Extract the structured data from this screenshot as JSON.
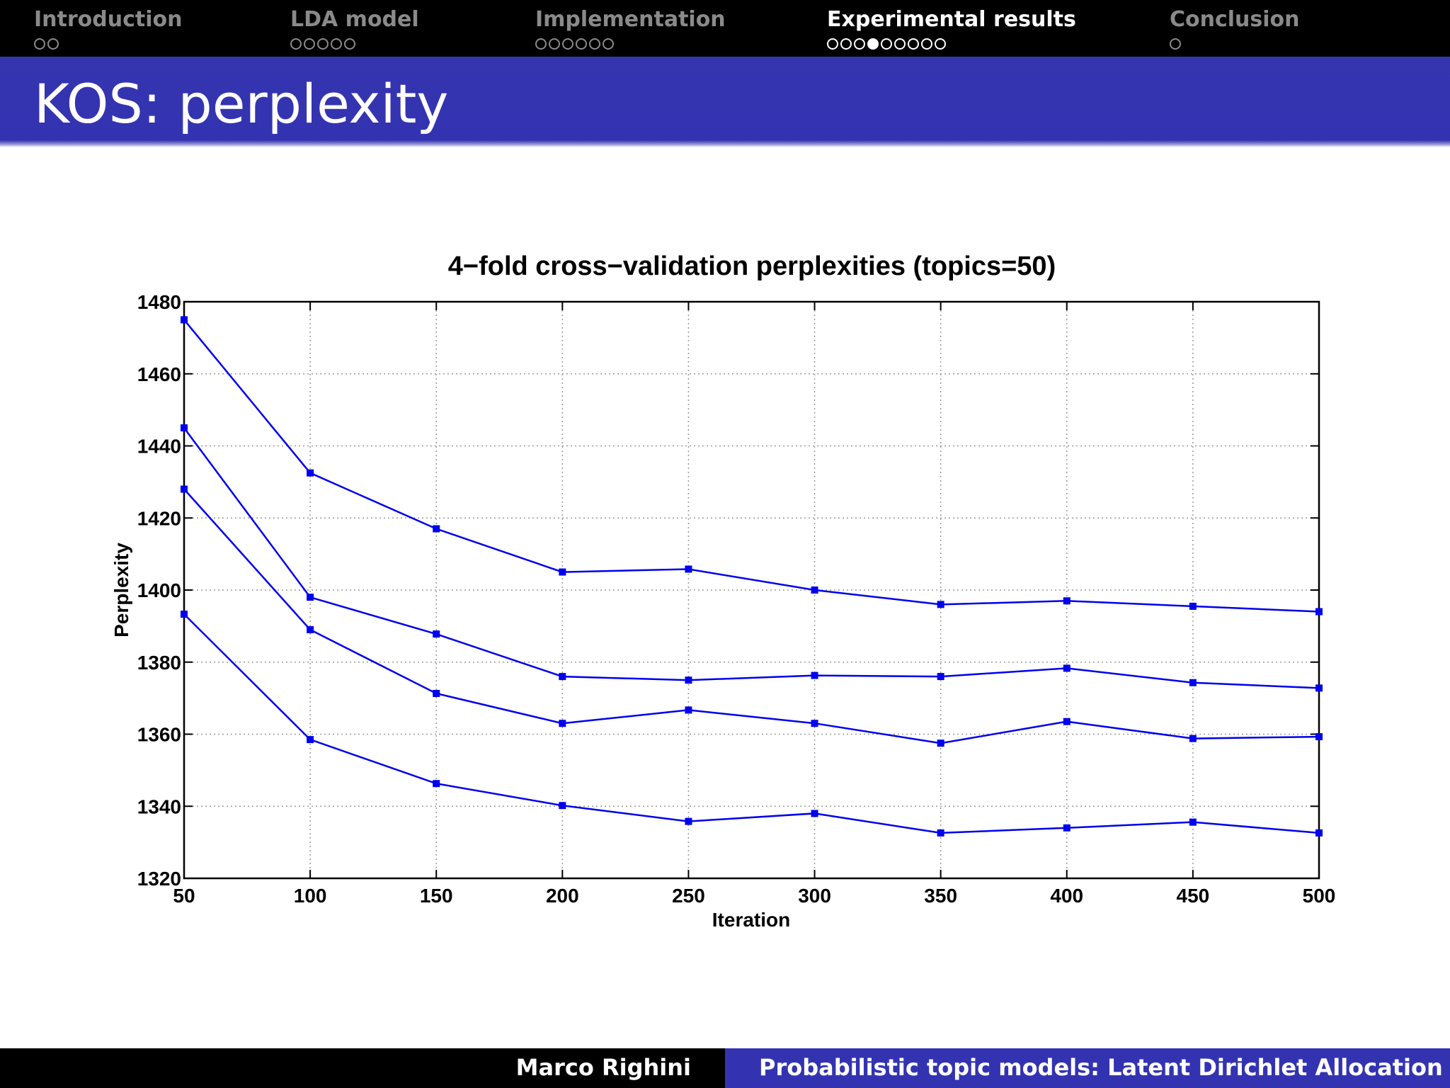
{
  "nav": {
    "sections": [
      {
        "label": "Introduction",
        "dots": 2,
        "filled": -1,
        "active": false
      },
      {
        "label": "LDA model",
        "dots": 5,
        "filled": -1,
        "active": false
      },
      {
        "label": "Implementation",
        "dots": 6,
        "filled": -1,
        "active": false
      },
      {
        "label": "Experimental results",
        "dots": 9,
        "filled": 3,
        "active": true
      },
      {
        "label": "Conclusion",
        "dots": 1,
        "filled": -1,
        "active": false
      }
    ]
  },
  "slide": {
    "title": "KOS: perplexity"
  },
  "footer": {
    "author": "Marco Righini",
    "talk_title": "Probabilistic topic models: Latent Dirichlet Allocation"
  },
  "colors": {
    "nav_bg": "#000000",
    "title_bar": "#3333b2",
    "series": "#0000ee"
  },
  "chart_data": {
    "type": "line",
    "title": "4−fold cross−validation perplexities (topics=50)",
    "xlabel": "Iteration",
    "ylabel": "Perplexity",
    "x": [
      50,
      100,
      150,
      200,
      250,
      300,
      350,
      400,
      450,
      500
    ],
    "xticks": [
      "50",
      "100",
      "150",
      "200",
      "250",
      "300",
      "350",
      "400",
      "450",
      "500"
    ],
    "yticks": [
      "1320",
      "1340",
      "1360",
      "1380",
      "1400",
      "1420",
      "1440",
      "1460",
      "1480"
    ],
    "xlim": [
      50,
      500
    ],
    "ylim": [
      1320,
      1480
    ],
    "grid": true,
    "marker": "square",
    "series": [
      {
        "values": [
          1475,
          1432.5,
          1417,
          1405,
          1405.8,
          1400,
          1396,
          1397,
          1395.5,
          1394
        ]
      },
      {
        "values": [
          1445,
          1398,
          1387.8,
          1376,
          1375,
          1376.3,
          1376,
          1378.3,
          1374.3,
          1372.8
        ]
      },
      {
        "values": [
          1428,
          1389,
          1371.3,
          1363,
          1366.7,
          1363,
          1357.5,
          1363.5,
          1358.8,
          1359.3
        ]
      },
      {
        "values": [
          1393.3,
          1358.5,
          1346.3,
          1340.2,
          1335.8,
          1338,
          1332.6,
          1334,
          1335.6,
          1332.6
        ]
      }
    ]
  }
}
